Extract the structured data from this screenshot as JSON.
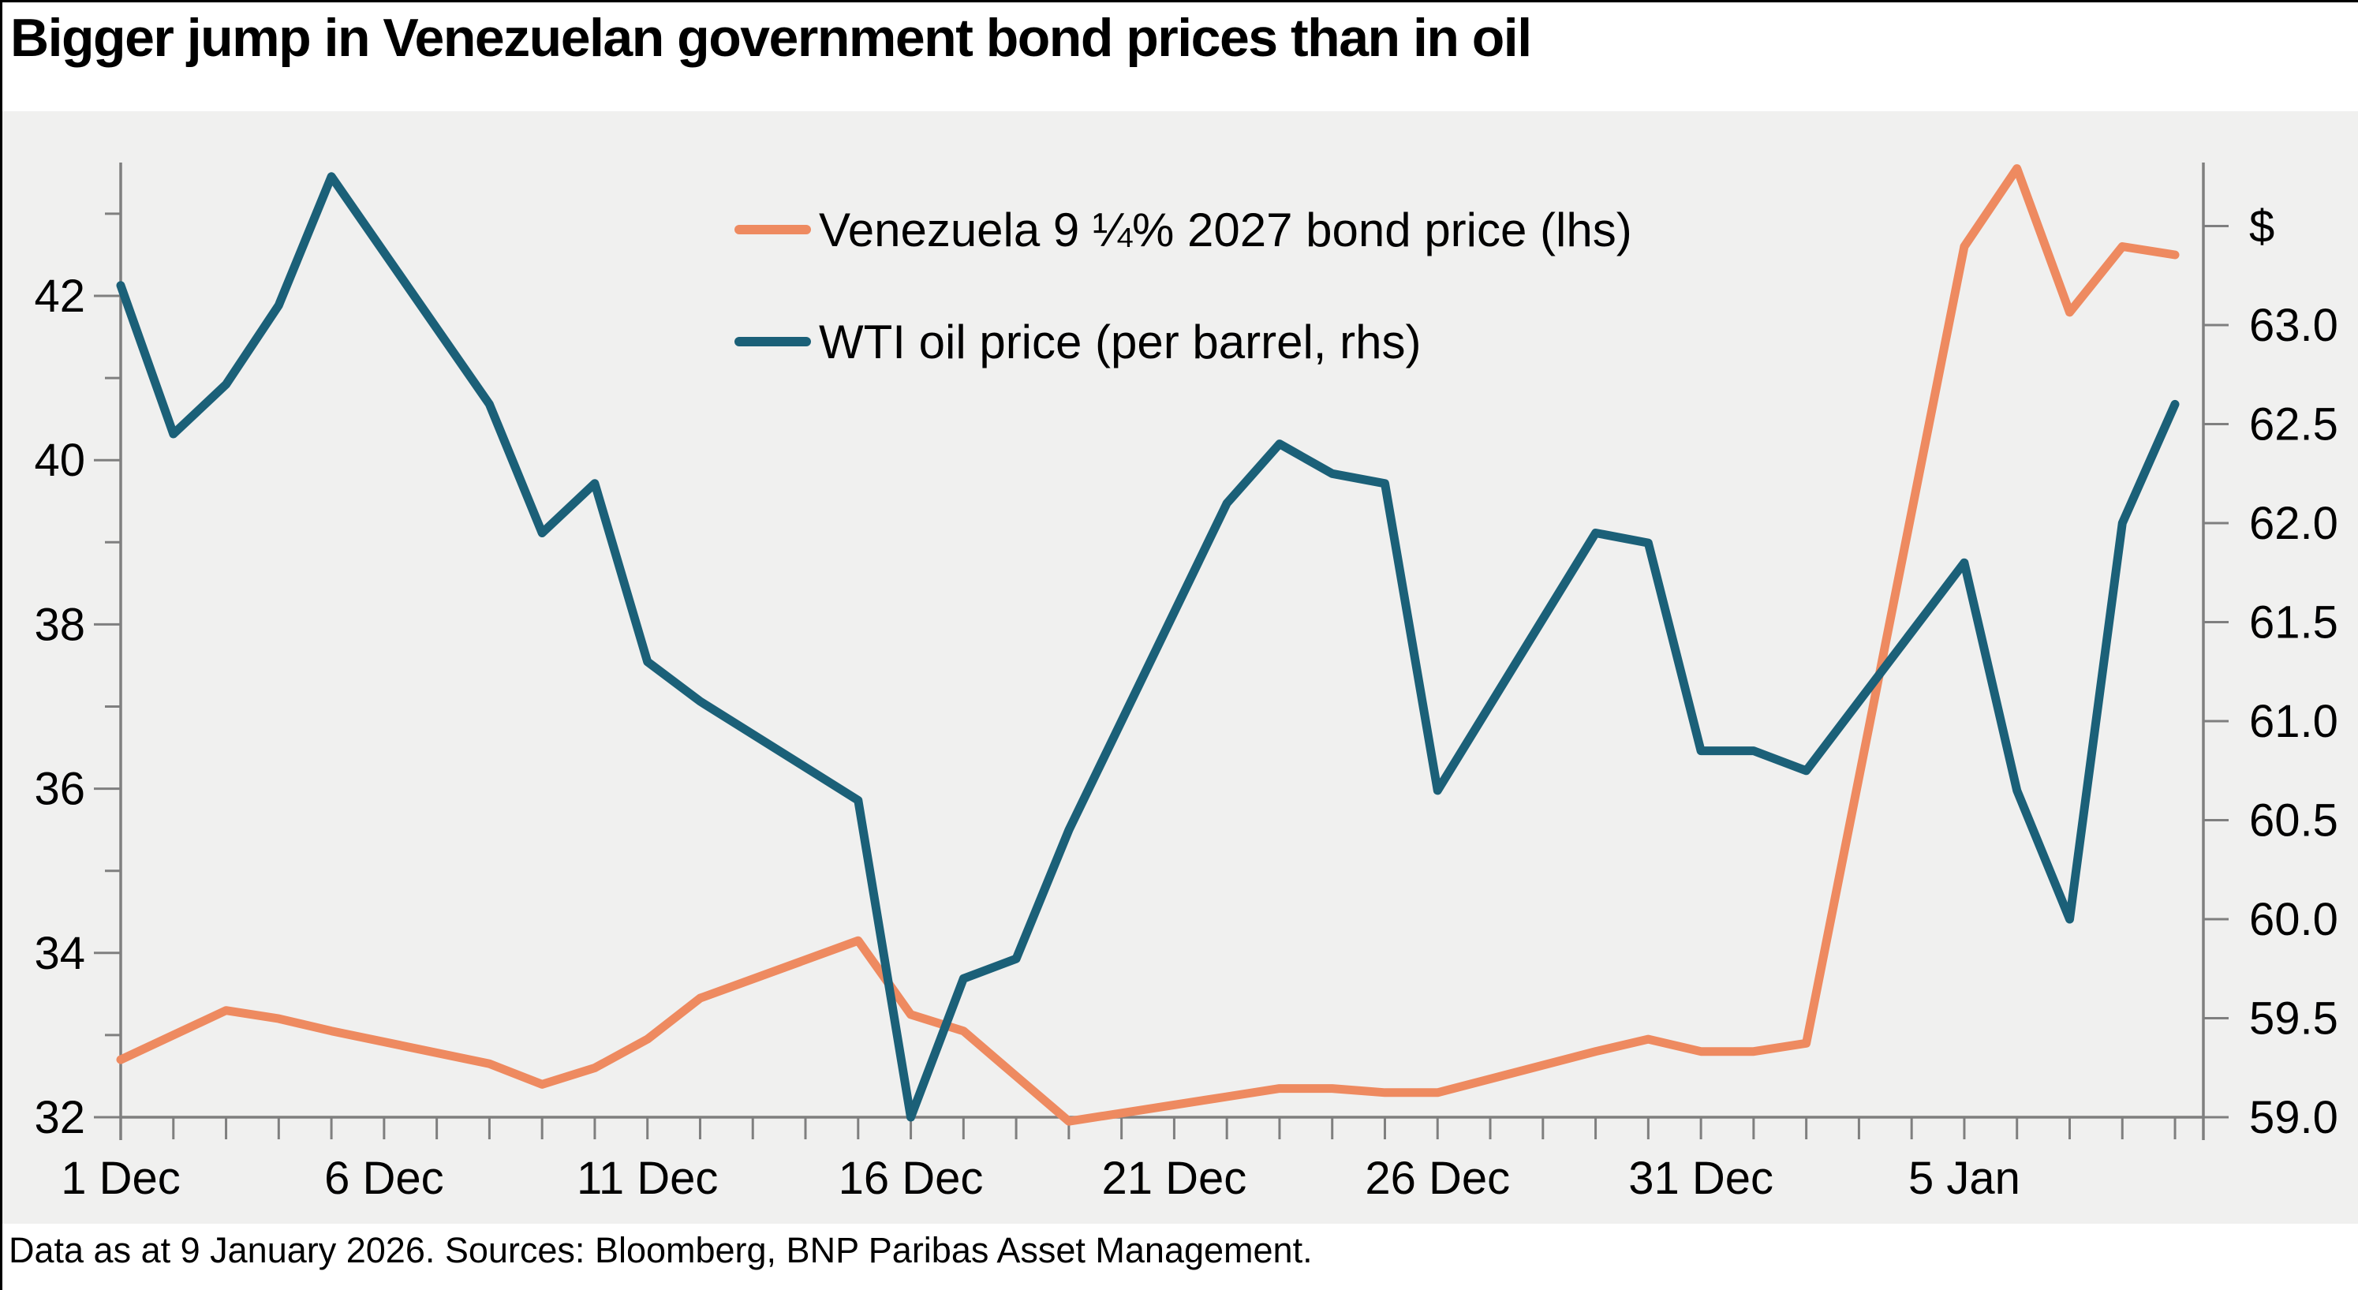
{
  "title": "Bigger jump in Venezuelan government bond prices than in oil",
  "footer": "Data as at 9 January 2026. Sources: Bloomberg, BNP Paribas Asset Management.",
  "legend": [
    {
      "label": "Venezuela 9 ¼% 2027 bond price (lhs)",
      "color": "#ee8a60"
    },
    {
      "label": "WTI oil price (per barrel, rhs)",
      "color": "#1b6078"
    }
  ],
  "colors": {
    "bond_line": "#ee8a60",
    "oil_line": "#1b6078",
    "axis": "#7f7f7f",
    "plot_background": "#f0f0ef",
    "text": "#000000"
  },
  "chart_data": {
    "type": "line",
    "title": "Bigger jump in Venezuelan government bond prices than in oil",
    "x_dates": [
      "1 Dec",
      "2 Dec",
      "3 Dec",
      "4 Dec",
      "5 Dec",
      "8 Dec",
      "9 Dec",
      "10 Dec",
      "11 Dec",
      "12 Dec",
      "15 Dec",
      "16 Dec",
      "17 Dec",
      "18 Dec",
      "19 Dec",
      "22 Dec",
      "23 Dec",
      "24 Dec",
      "25 Dec",
      "26 Dec",
      "29 Dec",
      "30 Dec",
      "31 Dec",
      "1 Jan",
      "2 Jan",
      "5 Jan",
      "6 Jan",
      "7 Jan",
      "8 Jan",
      "9 Jan"
    ],
    "day_index": [
      0,
      1,
      2,
      3,
      4,
      7,
      8,
      9,
      10,
      11,
      14,
      15,
      16,
      17,
      18,
      21,
      22,
      23,
      24,
      25,
      28,
      29,
      30,
      31,
      32,
      35,
      36,
      37,
      38,
      39
    ],
    "series": [
      {
        "name": "Venezuela 9 ¼% 2027 bond price (lhs)",
        "axis": "left",
        "color": "#ee8a60",
        "values": [
          32.7,
          33.0,
          33.3,
          33.2,
          33.05,
          32.65,
          32.4,
          32.6,
          32.95,
          33.45,
          34.15,
          33.25,
          33.05,
          32.5,
          31.95,
          32.25,
          32.35,
          32.35,
          32.3,
          32.3,
          32.8,
          32.95,
          32.8,
          32.8,
          32.9,
          42.6,
          43.55,
          41.8,
          42.6,
          42.5
        ]
      },
      {
        "name": "WTI oil price (per barrel, rhs)",
        "axis": "right",
        "color": "#1b6078",
        "values": [
          63.2,
          62.45,
          62.7,
          63.1,
          63.75,
          62.6,
          61.95,
          62.2,
          61.3,
          61.1,
          60.6,
          59.0,
          59.7,
          59.8,
          60.45,
          62.1,
          62.4,
          62.25,
          62.2,
          60.65,
          61.95,
          61.9,
          60.85,
          60.85,
          60.75,
          61.8,
          60.65,
          60.0,
          62.0,
          62.6
        ]
      }
    ],
    "left_axis": {
      "range": [
        32,
        43.63
      ],
      "tick_step": 1,
      "tick_values": [
        32,
        33,
        34,
        35,
        36,
        37,
        38,
        39,
        40,
        41,
        42,
        43
      ],
      "labeled_values": [
        32,
        34,
        36,
        38,
        40,
        42
      ],
      "labels": [
        "32",
        "34",
        "36",
        "38",
        "40",
        "42"
      ]
    },
    "right_axis": {
      "unit": "$",
      "range": [
        59.0,
        63.82
      ],
      "tick_step": 0.5,
      "tick_values": [
        59.0,
        59.5,
        60.0,
        60.5,
        61.0,
        61.5,
        62.0,
        62.5,
        63.0,
        63.5
      ],
      "labels": [
        "59.0",
        "59.5",
        "60.0",
        "60.5",
        "61.0",
        "61.5",
        "62.0",
        "62.5",
        "63.0",
        "$"
      ]
    },
    "x_axis": {
      "total_days": 39,
      "tick_every_day": true,
      "labeled_days": [
        0,
        5,
        10,
        15,
        20,
        25,
        30,
        35
      ],
      "labels": [
        "1 Dec",
        "6 Dec",
        "11 Dec",
        "16 Dec",
        "21 Dec",
        "26 Dec",
        "31 Dec",
        "5 Jan"
      ]
    },
    "grid": false,
    "legend_position": "upper-center-left"
  }
}
